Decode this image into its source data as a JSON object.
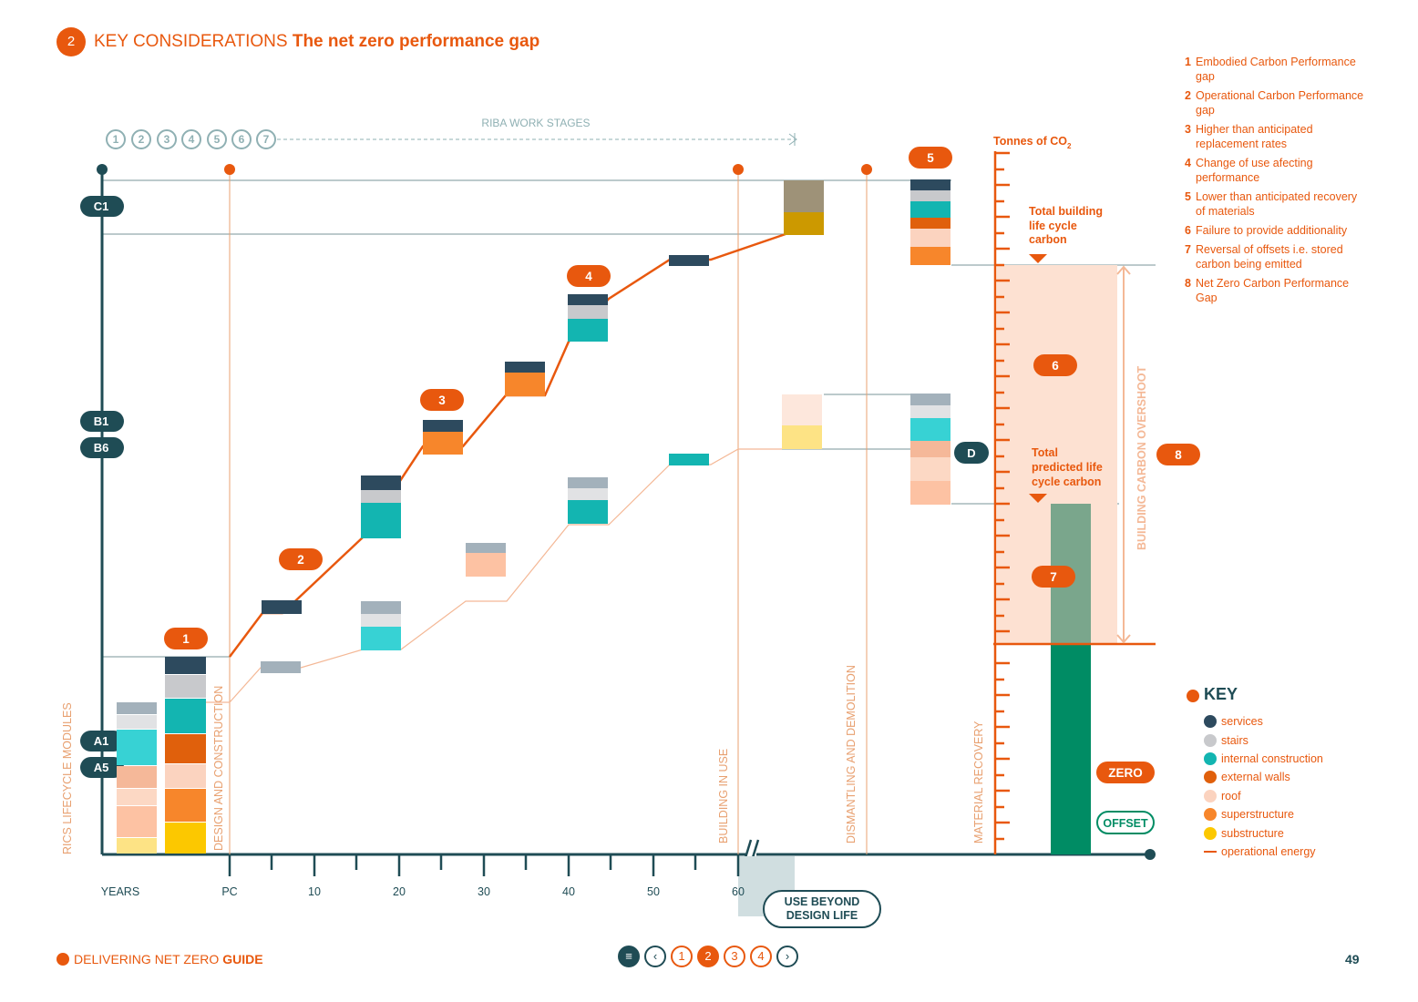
{
  "header": {
    "number": "2",
    "section": "KEY CONSIDERATIONS",
    "title": "The net zero performance gap"
  },
  "gaps_legend": [
    {
      "n": "1",
      "text": "Embodied Carbon Performance gap"
    },
    {
      "n": "2",
      "text": "Operational Carbon Performance gap"
    },
    {
      "n": "3",
      "text": "Higher than anticipated replacement rates"
    },
    {
      "n": "4",
      "text": "Change of use afecting performance"
    },
    {
      "n": "5",
      "text": "Lower than anticipated recovery of materials"
    },
    {
      "n": "6",
      "text": "Failure to provide additionality"
    },
    {
      "n": "7",
      "text": "Reversal of offsets i.e. stored carbon being emitted"
    },
    {
      "n": "8",
      "text": "Net Zero Carbon Performance Gap"
    }
  ],
  "diagram": {
    "riba_label": "RIBA WORK STAGES",
    "riba_stages": [
      "1",
      "2",
      "3",
      "4",
      "5",
      "6",
      "7"
    ],
    "modules": [
      "C1",
      "B1",
      "B6",
      "A1",
      "A5"
    ],
    "y_axis_label": "RICS LIFECYCLE MODULES",
    "x_axis_label": "YEARS",
    "x_ticks": [
      "PC",
      "10",
      "20",
      "30",
      "40",
      "50",
      "60"
    ],
    "phases": [
      "DESIGN AND CONSTRUCTION",
      "BUILDING IN USE",
      "DISMANTLING AND DEMOLITION",
      "MATERIAL RECOVERY"
    ],
    "use_beyond": "USE BEYOND DESIGN LIFE",
    "tonnes_label": "Tonnes of CO",
    "tonnes_sub": "2",
    "total_building_label": "Total building life cycle carbon",
    "total_predicted_label": "Total predicted life cycle carbon",
    "overshoot_label": "BUILDING CARBON OVERSHOOT",
    "d_label": "D",
    "zero_label": "ZERO",
    "offset_label": "OFFSET",
    "markers": [
      "1",
      "2",
      "3",
      "4",
      "5",
      "6",
      "7",
      "8"
    ]
  },
  "key": {
    "title": "KEY",
    "items": [
      {
        "label": "services",
        "color": "#2d4a5e"
      },
      {
        "label": "stairs",
        "color": "#c8c9cc"
      },
      {
        "label": "internal construction",
        "color": "#13b5b1"
      },
      {
        "label": "external walls",
        "color": "#e0600c"
      },
      {
        "label": "roof",
        "color": "#fbd3bf"
      },
      {
        "label": "superstructure",
        "color": "#f7862b"
      },
      {
        "label": "substructure",
        "color": "#fcc800"
      },
      {
        "label": "operational energy",
        "color": "#e8580e"
      }
    ]
  },
  "footer": {
    "text": "DELIVERING NET ZERO",
    "bold": "GUIDE",
    "page": "49",
    "nav_pages": [
      "1",
      "2",
      "3",
      "4"
    ]
  },
  "colors": {
    "accent": "#e8580e",
    "dark": "#1f4c55",
    "green": "#008c64",
    "green_light": "#7aa68c",
    "peach": "#fde1d2"
  }
}
